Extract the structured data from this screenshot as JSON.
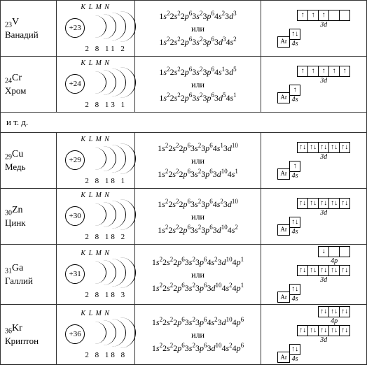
{
  "separator_text": "и т. д.",
  "or_word": "или",
  "shell_letters": "K L M N",
  "ar_label": "Ar",
  "s4_label": "4s",
  "d3_label": "3d",
  "p4_label": "4p",
  "elements": [
    {
      "num": "23",
      "sym": "V",
      "name": "Ванадий",
      "nucleus": "+23",
      "shells": "2 8 11 2",
      "cfg1": "1s²2s²2p⁶3s²3p⁶4s²3d³",
      "cfg2": "1s²2s²2p⁶3s²3p⁶3d³4s²",
      "s4": [
        "↑↓"
      ],
      "d3": [
        "↑",
        "↑",
        "↑",
        "",
        ""
      ],
      "p4": null
    },
    {
      "num": "24",
      "sym": "Cr",
      "name": "Хром",
      "nucleus": "+24",
      "shells": "2 8 13 1",
      "cfg1": "1s²2s²2p⁶3s²3p⁶4s¹3d⁵",
      "cfg2": "1s²2s²2p⁶3s²3p⁶3d⁵4s¹",
      "s4": [
        "↑"
      ],
      "d3": [
        "↑",
        "↑",
        "↑",
        "↑",
        "↑"
      ],
      "p4": null
    },
    {
      "num": "29",
      "sym": "Cu",
      "name": "Медь",
      "nucleus": "+29",
      "shells": "2 8 18 1",
      "cfg1": "1s²2s²2p⁶3s²3p⁶4s¹3d¹⁰",
      "cfg2": "1s²2s²2p⁶3s²3p⁶3d¹⁰4s¹",
      "s4": [
        "↑"
      ],
      "d3": [
        "↑↓",
        "↑↓",
        "↑↓",
        "↑↓",
        "↑↓"
      ],
      "p4": null
    },
    {
      "num": "30",
      "sym": "Zn",
      "name": "Цинк",
      "nucleus": "+30",
      "shells": "2 8 18 2",
      "cfg1": "1s²2s²2p⁶3s²3p⁶4s²3d¹⁰",
      "cfg2": "1s²2s²2p⁶3s²3p⁶3d¹⁰4s²",
      "s4": [
        "↑↓"
      ],
      "d3": [
        "↑↓",
        "↑↓",
        "↑↓",
        "↑↓",
        "↑↓"
      ],
      "p4": null
    },
    {
      "num": "31",
      "sym": "Ga",
      "name": "Галлий",
      "nucleus": "+31",
      "shells": "2 8 18 3",
      "cfg1": "1s²2s²2p⁶3s²3p⁶4s²3d¹⁰4p¹",
      "cfg2": "1s²2s²2p⁶3s²3p⁶3d¹⁰4s²4p¹",
      "s4": [
        "↑↓"
      ],
      "d3": [
        "↑↓",
        "↑↓",
        "↑↓",
        "↑↓",
        "↑↓"
      ],
      "p4": [
        "↓",
        "",
        ""
      ]
    },
    {
      "num": "36",
      "sym": "Kr",
      "name": "Криптон",
      "nucleus": "+36",
      "shells": "2 8 18 8",
      "cfg1": "1s²2s²2p⁶3s²3p⁶4s²3d¹⁰4p⁶",
      "cfg2": "1s²2s²2p⁶3s²3p⁶3d¹⁰4s²4p⁶",
      "s4": [
        "↑↓"
      ],
      "d3": [
        "↑↓",
        "↑↓",
        "↑↓",
        "↑↓",
        "↑↓"
      ],
      "p4": [
        "↑↓",
        "↑↓",
        "↑↓"
      ]
    }
  ]
}
